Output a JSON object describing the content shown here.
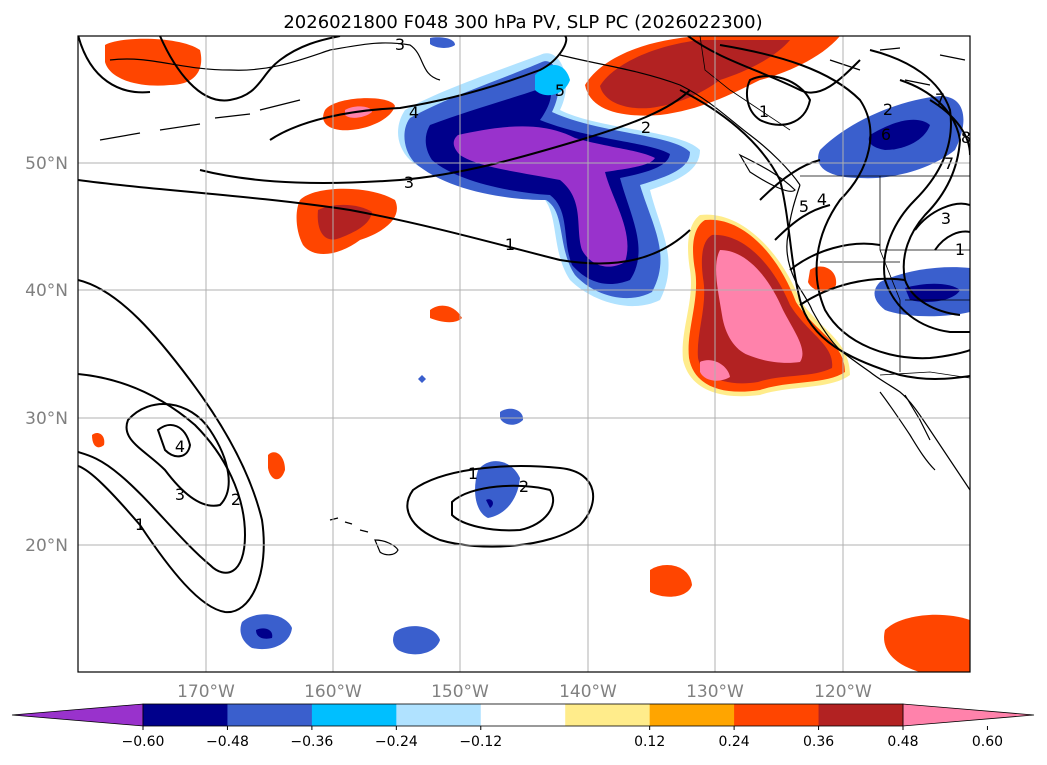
{
  "chart_data": {
    "type": "map-contour",
    "title": "2026021800 F048 300 hPa PV, SLP PC (2026022300)",
    "latitude_labels": [
      "50°N",
      "40°N",
      "30°N",
      "20°N"
    ],
    "longitude_labels": [
      "170°W",
      "160°W",
      "150°W",
      "140°W",
      "130°W",
      "120°W"
    ],
    "map_extent": {
      "lon_min": -180,
      "lon_max": -110,
      "lat_min": 10,
      "lat_max": 60
    },
    "gridlines": true,
    "colorbar": {
      "ticks": [
        "−0.60",
        "−0.48",
        "−0.36",
        "−0.24",
        "−0.12",
        "0.12",
        "0.24",
        "0.36",
        "0.48",
        "0.60"
      ],
      "bins": [
        {
          "range": "< -0.60",
          "color": "#9932cc"
        },
        {
          "range": "-0.60 to -0.48",
          "color": "#00008b"
        },
        {
          "range": "-0.48 to -0.36",
          "color": "#3a5fcd"
        },
        {
          "range": "-0.36 to -0.24",
          "color": "#00bfff"
        },
        {
          "range": "-0.24 to -0.12",
          "color": "#b0e2ff"
        },
        {
          "range": "-0.12 to 0.12",
          "color": "#ffffff"
        },
        {
          "range": "0.12 to 0.24",
          "color": "#ffec8b"
        },
        {
          "range": "0.24 to 0.36",
          "color": "#ffa500"
        },
        {
          "range": "0.36 to 0.48",
          "color": "#ff4500"
        },
        {
          "range": "0.48 to 0.60",
          "color": "#b22222"
        },
        {
          "range": "> 0.60",
          "color": "#ff82ab"
        }
      ],
      "extend": "both"
    },
    "contour_labels": [
      "1",
      "2",
      "3",
      "4",
      "5",
      "1",
      "2",
      "3",
      "4",
      "5",
      "6",
      "7",
      "8",
      "1",
      "2",
      "3",
      "4",
      "1",
      "2",
      "1",
      "7",
      "3"
    ]
  }
}
